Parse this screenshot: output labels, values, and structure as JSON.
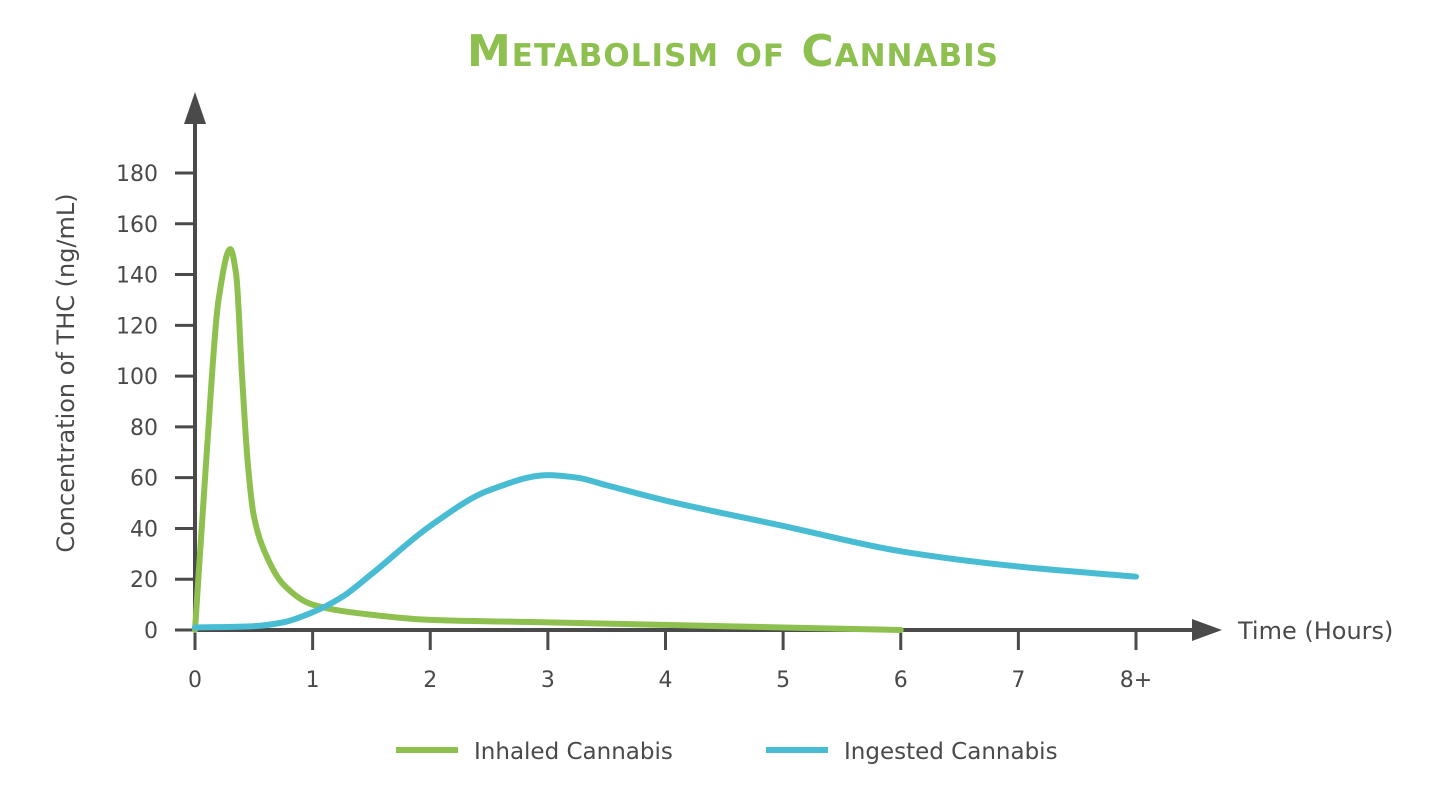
{
  "chart_data": {
    "type": "line",
    "title": "Metabolism of Cannabis",
    "xlabel": "Time (Hours)",
    "ylabel": "Concentration of THC (ng/mL)",
    "x_ticks": [
      0,
      1,
      2,
      3,
      4,
      5,
      6,
      7,
      8
    ],
    "x_tick_labels": [
      "0",
      "1",
      "2",
      "3",
      "4",
      "5",
      "6",
      "7",
      "8+"
    ],
    "y_ticks": [
      0,
      20,
      40,
      60,
      80,
      100,
      120,
      140,
      160,
      180
    ],
    "y_tick_labels": [
      "0",
      "20",
      "40",
      "60",
      "80",
      "100",
      "120",
      "140",
      "160",
      "180"
    ],
    "xlim": [
      0,
      8
    ],
    "ylim": [
      0,
      180
    ],
    "grid": false,
    "legend_position": "bottom",
    "series": [
      {
        "name": "Inhaled Cannabis",
        "color": "#8dc04f",
        "points": [
          [
            0,
            0
          ],
          [
            0.1,
            70
          ],
          [
            0.2,
            130
          ],
          [
            0.3,
            150
          ],
          [
            0.35,
            140
          ],
          [
            0.4,
            100
          ],
          [
            0.45,
            65
          ],
          [
            0.5,
            45
          ],
          [
            0.6,
            30
          ],
          [
            0.75,
            18
          ],
          [
            1.0,
            10
          ],
          [
            1.5,
            6
          ],
          [
            2.0,
            4
          ],
          [
            3.0,
            3
          ],
          [
            4.0,
            2
          ],
          [
            5.0,
            1
          ],
          [
            6.0,
            0
          ]
        ]
      },
      {
        "name": "Ingested Cannabis",
        "color": "#47bcd3",
        "points": [
          [
            0,
            1
          ],
          [
            0.5,
            1.5
          ],
          [
            0.75,
            3
          ],
          [
            1.0,
            7
          ],
          [
            1.25,
            13
          ],
          [
            1.5,
            22
          ],
          [
            2.0,
            41
          ],
          [
            2.5,
            55
          ],
          [
            3.0,
            61
          ],
          [
            3.25,
            60
          ],
          [
            3.5,
            57
          ],
          [
            4.0,
            51
          ],
          [
            5.0,
            41
          ],
          [
            6.0,
            31
          ],
          [
            7.0,
            25
          ],
          [
            8.0,
            21
          ]
        ]
      }
    ]
  }
}
